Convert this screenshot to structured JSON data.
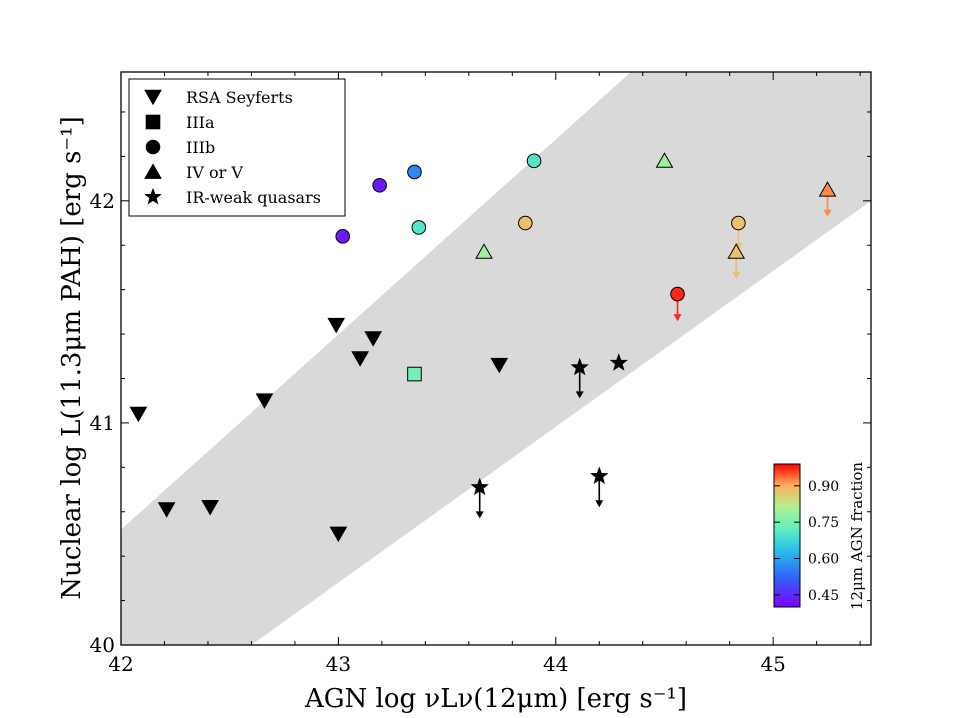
{
  "chart_data": {
    "type": "scatter",
    "title": "",
    "xlabel": "AGN log νLν(12μm) [erg s⁻¹]",
    "ylabel": "Nuclear log L(11.3μm PAH) [erg s⁻¹]",
    "xlim": [
      42.0,
      45.45
    ],
    "ylim": [
      40.0,
      42.58
    ],
    "x_ticks": [
      "42",
      "43",
      "44",
      "45"
    ],
    "y_ticks": [
      "40",
      "41",
      "42"
    ],
    "x_tick_values": [
      42,
      43,
      44,
      45
    ],
    "y_tick_values": [
      40,
      41,
      42
    ],
    "grid": false,
    "shaded_band": {
      "description": "grey band",
      "lower_edge": [
        [
          42.6,
          40.0
        ],
        [
          45.45,
          42.0
        ]
      ],
      "upper_edge": [
        [
          42.0,
          40.52
        ],
        [
          45.45,
          43.55
        ]
      ]
    },
    "legend": {
      "location": "top-left",
      "entries": [
        {
          "marker": "triangle-down",
          "label": "RSA Seyferts"
        },
        {
          "marker": "square",
          "label": "IIIa"
        },
        {
          "marker": "circle",
          "label": "IIIb"
        },
        {
          "marker": "triangle-up",
          "label": "IV or V"
        },
        {
          "marker": "star",
          "label": "IR-weak quasars"
        }
      ]
    },
    "colorbar": {
      "label": "12μm AGN fraction",
      "range": [
        0.4,
        0.99
      ],
      "tick_values": [
        0.45,
        0.6,
        0.75,
        0.9
      ],
      "tick_labels": [
        "0.45",
        "0.60",
        "0.75",
        "0.90"
      ]
    },
    "series": [
      {
        "name": "RSA Seyferts",
        "marker": "triangle-down",
        "points": [
          {
            "x": 42.08,
            "y": 41.04
          },
          {
            "x": 42.21,
            "y": 40.61
          },
          {
            "x": 42.41,
            "y": 40.62
          },
          {
            "x": 42.66,
            "y": 41.1
          },
          {
            "x": 42.99,
            "y": 41.44
          },
          {
            "x": 43.1,
            "y": 41.29
          },
          {
            "x": 43.16,
            "y": 41.38
          },
          {
            "x": 43.0,
            "y": 40.5
          },
          {
            "x": 43.74,
            "y": 41.26
          }
        ]
      },
      {
        "name": "IIIa",
        "marker": "square",
        "points": [
          {
            "x": 43.35,
            "y": 41.22,
            "agn_fraction": 0.74
          }
        ]
      },
      {
        "name": "IIIb",
        "marker": "circle",
        "points": [
          {
            "x": 43.02,
            "y": 41.84,
            "agn_fraction": 0.43
          },
          {
            "x": 43.19,
            "y": 42.07,
            "agn_fraction": 0.43
          },
          {
            "x": 43.35,
            "y": 42.13,
            "agn_fraction": 0.57
          },
          {
            "x": 43.37,
            "y": 41.88,
            "agn_fraction": 0.7
          },
          {
            "x": 43.9,
            "y": 42.18,
            "agn_fraction": 0.7
          },
          {
            "x": 43.86,
            "y": 41.9,
            "agn_fraction": 0.88
          },
          {
            "x": 44.84,
            "y": 41.9,
            "agn_fraction": 0.88,
            "upper_limit": true
          },
          {
            "x": 44.56,
            "y": 41.58,
            "agn_fraction": 0.97,
            "upper_limit": true
          }
        ]
      },
      {
        "name": "IV or V",
        "marker": "triangle-up",
        "points": [
          {
            "x": 43.67,
            "y": 41.77,
            "agn_fraction": 0.79
          },
          {
            "x": 44.5,
            "y": 42.18,
            "agn_fraction": 0.79
          },
          {
            "x": 44.83,
            "y": 41.77,
            "agn_fraction": 0.88,
            "upper_limit": true
          },
          {
            "x": 45.25,
            "y": 42.05,
            "agn_fraction": 0.92,
            "upper_limit": true
          }
        ]
      },
      {
        "name": "IR-weak quasars",
        "marker": "star",
        "points": [
          {
            "x": 43.65,
            "y": 40.71,
            "upper_limit": true
          },
          {
            "x": 44.11,
            "y": 41.25,
            "upper_limit": true
          },
          {
            "x": 44.2,
            "y": 40.76,
            "upper_limit": true
          },
          {
            "x": 44.29,
            "y": 41.27
          }
        ]
      }
    ]
  }
}
